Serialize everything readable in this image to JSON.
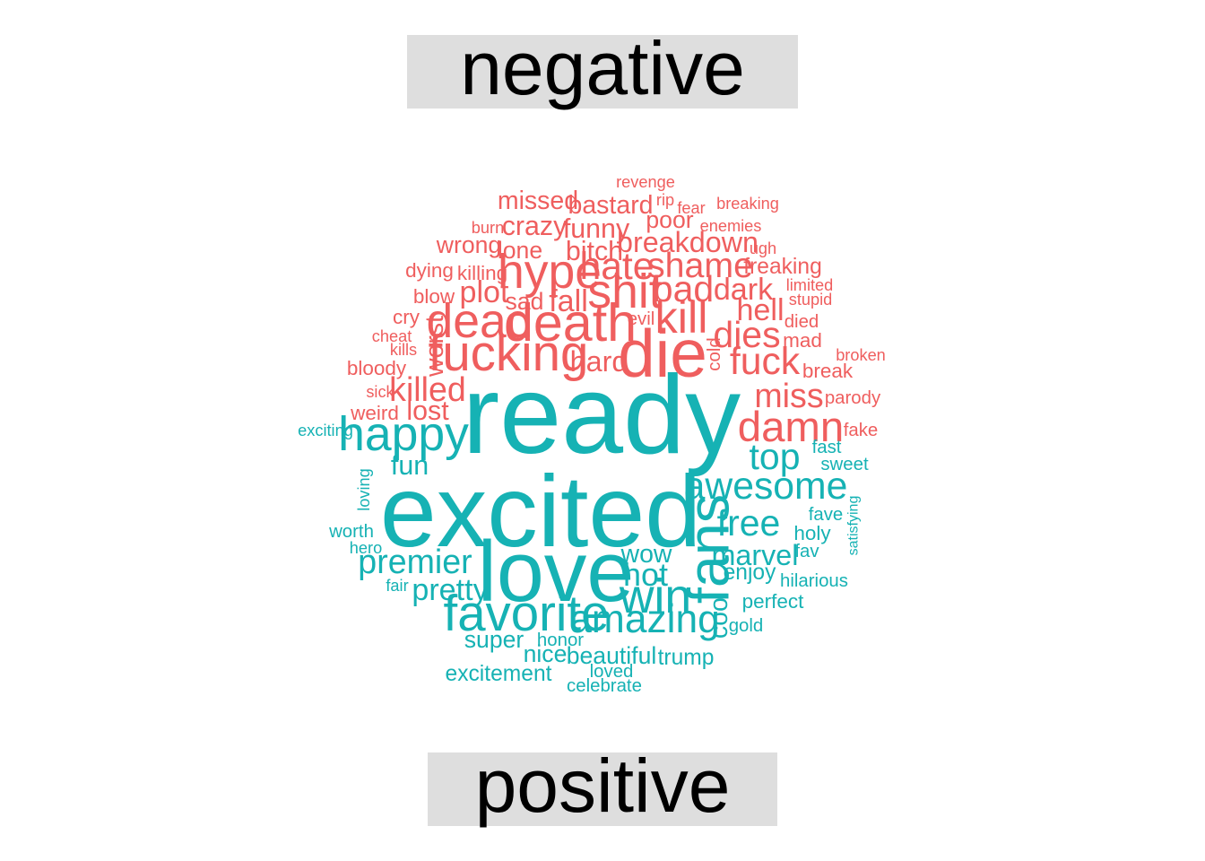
{
  "chart_data": {
    "type": "wordcloud",
    "groups": [
      "negative",
      "positive"
    ],
    "colors": {
      "negative": "#EF5E5E",
      "positive": "#16B2B4"
    },
    "words": [
      {
        "word": "ready",
        "sentiment": "positive",
        "freq": 100
      },
      {
        "word": "excited",
        "sentiment": "positive",
        "freq": 88
      },
      {
        "word": "love",
        "sentiment": "positive",
        "freq": 70
      },
      {
        "word": "die",
        "sentiment": "negative",
        "freq": 52
      },
      {
        "word": "fans",
        "sentiment": "positive",
        "freq": 44
      },
      {
        "word": "death",
        "sentiment": "negative",
        "freq": 40
      },
      {
        "word": "fucking",
        "sentiment": "negative",
        "freq": 38
      },
      {
        "word": "favorite",
        "sentiment": "positive",
        "freq": 38
      },
      {
        "word": "hype",
        "sentiment": "negative",
        "freq": 36
      },
      {
        "word": "win",
        "sentiment": "positive",
        "freq": 36
      },
      {
        "word": "shit",
        "sentiment": "negative",
        "freq": 36
      },
      {
        "word": "happy",
        "sentiment": "positive",
        "freq": 36
      },
      {
        "word": "dead",
        "sentiment": "negative",
        "freq": 36
      },
      {
        "word": "kill",
        "sentiment": "negative",
        "freq": 34
      },
      {
        "word": "damn",
        "sentiment": "negative",
        "freq": 32
      },
      {
        "word": "amazing",
        "sentiment": "positive",
        "freq": 30
      },
      {
        "word": "awesome",
        "sentiment": "positive",
        "freq": 29
      },
      {
        "word": "hate",
        "sentiment": "negative",
        "freq": 29
      },
      {
        "word": "fuck",
        "sentiment": "negative",
        "freq": 29
      },
      {
        "word": "dies",
        "sentiment": "negative",
        "freq": 28
      },
      {
        "word": "free",
        "sentiment": "positive",
        "freq": 28
      },
      {
        "word": "top",
        "sentiment": "positive",
        "freq": 28
      },
      {
        "word": "bad",
        "sentiment": "negative",
        "freq": 28
      },
      {
        "word": "shame",
        "sentiment": "negative",
        "freq": 27
      },
      {
        "word": "killed",
        "sentiment": "negative",
        "freq": 26
      },
      {
        "word": "miss",
        "sentiment": "negative",
        "freq": 26
      },
      {
        "word": "premier",
        "sentiment": "positive",
        "freq": 26
      },
      {
        "word": "hot",
        "sentiment": "positive",
        "freq": 25
      },
      {
        "word": "dark",
        "sentiment": "negative",
        "freq": 24
      },
      {
        "word": "hell",
        "sentiment": "negative",
        "freq": 24
      },
      {
        "word": "hard",
        "sentiment": "negative",
        "freq": 23
      },
      {
        "word": "fall",
        "sentiment": "negative",
        "freq": 24
      },
      {
        "word": "plot",
        "sentiment": "negative",
        "freq": 24
      },
      {
        "word": "pretty",
        "sentiment": "positive",
        "freq": 24
      },
      {
        "word": "marvel",
        "sentiment": "positive",
        "freq": 23
      },
      {
        "word": "breakdown",
        "sentiment": "negative",
        "freq": 23
      },
      {
        "word": "funny",
        "sentiment": "negative",
        "freq": 22
      },
      {
        "word": "bitch",
        "sentiment": "negative",
        "freq": 22
      },
      {
        "word": "bastard",
        "sentiment": "negative",
        "freq": 21
      },
      {
        "word": "crazy",
        "sentiment": "negative",
        "freq": 22
      },
      {
        "word": "missed",
        "sentiment": "negative",
        "freq": 21
      },
      {
        "word": "lost",
        "sentiment": "negative",
        "freq": 22
      },
      {
        "word": "wow",
        "sentiment": "positive",
        "freq": 21
      },
      {
        "word": "fun",
        "sentiment": "positive",
        "freq": 22
      },
      {
        "word": "worst",
        "sentiment": "negative",
        "freq": 21
      },
      {
        "word": "cool",
        "sentiment": "positive",
        "freq": 21
      },
      {
        "word": "poor",
        "sentiment": "negative",
        "freq": 20
      },
      {
        "word": "lone",
        "sentiment": "negative",
        "freq": 20
      },
      {
        "word": "wrong",
        "sentiment": "negative",
        "freq": 20
      },
      {
        "word": "sad",
        "sentiment": "negative",
        "freq": 20
      },
      {
        "word": "freaking",
        "sentiment": "negative",
        "freq": 19
      },
      {
        "word": "super",
        "sentiment": "positive",
        "freq": 20
      },
      {
        "word": "nice",
        "sentiment": "positive",
        "freq": 20
      },
      {
        "word": "beautiful",
        "sentiment": "positive",
        "freq": 20
      },
      {
        "word": "trump",
        "sentiment": "positive",
        "freq": 19
      },
      {
        "word": "excitement",
        "sentiment": "positive",
        "freq": 19
      },
      {
        "word": "enjoy",
        "sentiment": "positive",
        "freq": 19
      },
      {
        "word": "perfect",
        "sentiment": "positive",
        "freq": 18
      },
      {
        "word": "holy",
        "sentiment": "positive",
        "freq": 18
      },
      {
        "word": "mad",
        "sentiment": "negative",
        "freq": 18
      },
      {
        "word": "break",
        "sentiment": "negative",
        "freq": 18
      },
      {
        "word": "dying",
        "sentiment": "negative",
        "freq": 18
      },
      {
        "word": "killing",
        "sentiment": "negative",
        "freq": 18
      },
      {
        "word": "blow",
        "sentiment": "negative",
        "freq": 18
      },
      {
        "word": "cry",
        "sentiment": "negative",
        "freq": 18
      },
      {
        "word": "bloody",
        "sentiment": "negative",
        "freq": 18
      },
      {
        "word": "weird",
        "sentiment": "negative",
        "freq": 18
      },
      {
        "word": "cold",
        "sentiment": "negative",
        "freq": 17
      },
      {
        "word": "evil",
        "sentiment": "negative",
        "freq": 17
      },
      {
        "word": "died",
        "sentiment": "negative",
        "freq": 17
      },
      {
        "word": "fake",
        "sentiment": "negative",
        "freq": 17
      },
      {
        "word": "fast",
        "sentiment": "positive",
        "freq": 17
      },
      {
        "word": "sweet",
        "sentiment": "positive",
        "freq": 17
      },
      {
        "word": "fave",
        "sentiment": "positive",
        "freq": 17
      },
      {
        "word": "fav",
        "sentiment": "positive",
        "freq": 17
      },
      {
        "word": "hilarious",
        "sentiment": "positive",
        "freq": 17
      },
      {
        "word": "gold",
        "sentiment": "positive",
        "freq": 17
      },
      {
        "word": "honor",
        "sentiment": "positive",
        "freq": 17
      },
      {
        "word": "loved",
        "sentiment": "positive",
        "freq": 17
      },
      {
        "word": "celebrate",
        "sentiment": "positive",
        "freq": 17
      },
      {
        "word": "worth",
        "sentiment": "positive",
        "freq": 17
      },
      {
        "word": "parody",
        "sentiment": "negative",
        "freq": 17
      },
      {
        "word": "broken",
        "sentiment": "negative",
        "freq": 16
      },
      {
        "word": "exciting",
        "sentiment": "positive",
        "freq": 16
      },
      {
        "word": "loving",
        "sentiment": "positive",
        "freq": 16
      },
      {
        "word": "hero",
        "sentiment": "positive",
        "freq": 16
      },
      {
        "word": "fair",
        "sentiment": "positive",
        "freq": 16
      },
      {
        "word": "satisfying",
        "sentiment": "positive",
        "freq": 15
      },
      {
        "word": "stupid",
        "sentiment": "negative",
        "freq": 16
      },
      {
        "word": "limited",
        "sentiment": "negative",
        "freq": 16
      },
      {
        "word": "burn",
        "sentiment": "negative",
        "freq": 16
      },
      {
        "word": "enemies",
        "sentiment": "negative",
        "freq": 16
      },
      {
        "word": "breaking",
        "sentiment": "negative",
        "freq": 16
      },
      {
        "word": "fear",
        "sentiment": "negative",
        "freq": 16
      },
      {
        "word": "revenge",
        "sentiment": "negative",
        "freq": 16
      },
      {
        "word": "rip",
        "sentiment": "negative",
        "freq": 16
      },
      {
        "word": "ugh",
        "sentiment": "negative",
        "freq": 16
      },
      {
        "word": "cheat",
        "sentiment": "negative",
        "freq": 16
      },
      {
        "word": "kills",
        "sentiment": "negative",
        "freq": 16
      },
      {
        "word": "sick",
        "sentiment": "negative",
        "freq": 16
      }
    ]
  }
}
